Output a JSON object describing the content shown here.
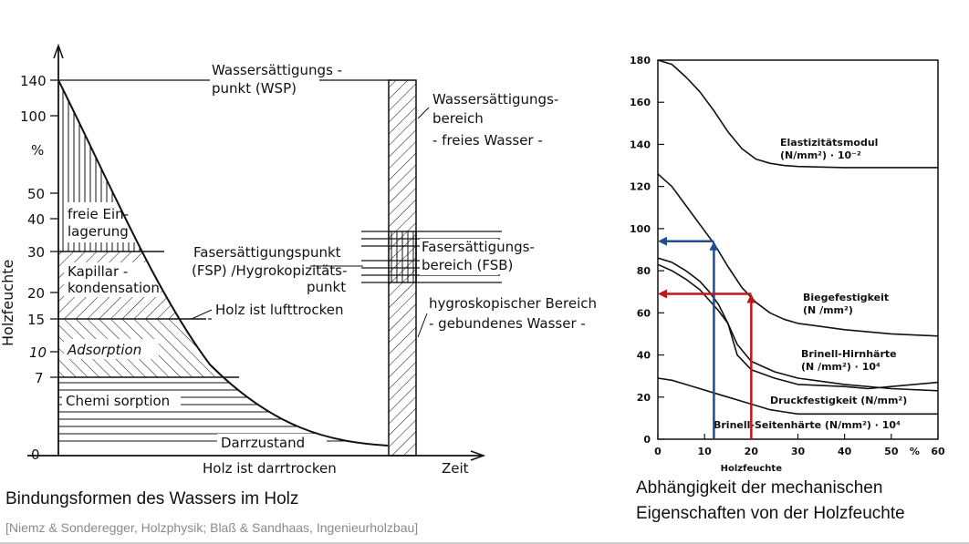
{
  "left_diagram": {
    "ylabel": "Holzfeuchte",
    "y_ticks": [
      "140",
      "100",
      "%",
      "50",
      "40",
      "30",
      "20",
      "15",
      "10",
      "7",
      "0"
    ],
    "x_label": "Zeit",
    "zones": {
      "freie": [
        "freie Ein-",
        "lagerung"
      ],
      "kapillar": [
        "Kapillar -",
        "kondensation"
      ],
      "adsorption": "Adsorption",
      "chemi": "Chemi sorption",
      "darrzustand": "Darrzustand"
    },
    "labels": {
      "wsp": [
        "Wassersättigungs -",
        "punkt (WSP)"
      ],
      "fsp": [
        "Fasersättigungspunkt",
        "(FSP) /Hygrokopizitäts-",
        "punkt"
      ],
      "lufttrocken": "Holz ist lufttrocken",
      "darrtrocken": "Holz ist darrtrocken",
      "wsb": [
        "Wassersättigungs-",
        "bereich",
        "- freies Wasser -"
      ],
      "fsb": [
        "Fasersättigungs-",
        "bereich (FSB)"
      ],
      "hygro": [
        "hygroskopischer Bereich",
        "- gebundenes Wasser -"
      ]
    }
  },
  "chart_data": {
    "type": "line",
    "xlabel": "Holzfeuchte",
    "xlim": [
      0,
      60
    ],
    "ylim": [
      0,
      180
    ],
    "x_ticks": [
      "0",
      "10",
      "20",
      "30",
      "40",
      "50",
      "%",
      "60"
    ],
    "y_ticks": [
      "0",
      "20",
      "40",
      "60",
      "80",
      "100",
      "120",
      "140",
      "160",
      "180"
    ],
    "series": [
      {
        "name": "Elastizitätsmodul",
        "name2": "(N/mm²) · 10⁻²",
        "x": [
          0,
          3,
          6,
          9,
          12,
          15,
          18,
          21,
          24,
          27,
          30,
          40,
          50,
          60
        ],
        "y": [
          180,
          178,
          172,
          165,
          156,
          146,
          138,
          133,
          131,
          130,
          129.5,
          129,
          129,
          129
        ]
      },
      {
        "name": "Biegefestigkeit",
        "name2": "(N /mm²)",
        "x": [
          0,
          3,
          6,
          9,
          12,
          15,
          18,
          21,
          24,
          27,
          30,
          40,
          50,
          60
        ],
        "y": [
          126,
          120,
          111,
          102,
          93,
          82,
          72,
          65,
          60,
          57,
          55,
          52,
          50,
          49
        ]
      },
      {
        "name": "Brinell-Hirnhärte",
        "name2": "(N /mm²) · 10⁴",
        "x": [
          0,
          3,
          6,
          9,
          11,
          13,
          15,
          17,
          20,
          25,
          30,
          40,
          45,
          50,
          60
        ],
        "y": [
          86,
          84,
          80,
          75,
          70,
          64,
          55,
          40,
          33,
          29,
          26,
          25,
          24,
          25,
          27
        ]
      },
      {
        "name": "Druckfestigkeit (N/mm²)",
        "x": [
          0,
          3,
          6,
          9,
          11,
          13,
          15,
          17,
          20,
          25,
          30,
          40,
          50,
          60
        ],
        "y": [
          83,
          80,
          76,
          71,
          66,
          61,
          55,
          45,
          37,
          32,
          29,
          26,
          24,
          23
        ]
      },
      {
        "name": "Brinell-Seitenhärte (N/mm²) · 10⁴",
        "x": [
          0,
          3,
          6,
          9,
          12,
          15,
          18,
          21,
          24,
          27,
          30,
          40,
          50,
          60
        ],
        "y": [
          29,
          28,
          26,
          24,
          22,
          20,
          18,
          16,
          14,
          13,
          12,
          12,
          12,
          12
        ]
      }
    ],
    "markers": [
      {
        "color": "#1f4e8c",
        "x": 12,
        "y": 94
      },
      {
        "color": "#c0161d",
        "x": 20,
        "y": 69
      }
    ]
  },
  "captions": {
    "left": "Bindungsformen des Wassers im Holz",
    "source": "[Niemz & Sonderegger, Holzphysik; Blaß & Sandhaas, Ingenieurholzbau]",
    "right_line1": "Abhängigkeit der mechanischen",
    "right_line2": "Eigenschaften von der Holzfeuchte"
  }
}
